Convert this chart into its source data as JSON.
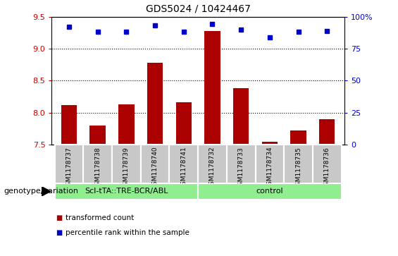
{
  "title": "GDS5024 / 10424467",
  "samples": [
    "GSM1178737",
    "GSM1178738",
    "GSM1178739",
    "GSM1178740",
    "GSM1178741",
    "GSM1178732",
    "GSM1178733",
    "GSM1178734",
    "GSM1178735",
    "GSM1178736"
  ],
  "bar_values": [
    8.12,
    7.8,
    8.13,
    8.78,
    8.16,
    9.28,
    8.38,
    7.54,
    7.72,
    7.9
  ],
  "dot_values": [
    92,
    88,
    88,
    93,
    88,
    94,
    90,
    84,
    88,
    89
  ],
  "group1_count": 5,
  "group2_count": 5,
  "group1_label": "Scl-tTA::TRE-BCR/ABL",
  "group2_label": "control",
  "bar_color": "#AA0000",
  "dot_color": "#0000CC",
  "group_bg": "#90EE90",
  "tick_bg": "#C8C8C8",
  "ylim_left": [
    7.5,
    9.5
  ],
  "ylim_right": [
    0,
    100
  ],
  "yticks_left": [
    7.5,
    8.0,
    8.5,
    9.0,
    9.5
  ],
  "yticks_right": [
    0,
    25,
    50,
    75,
    100
  ],
  "grid_values": [
    8.0,
    8.5,
    9.0
  ],
  "legend_red_label": "transformed count",
  "legend_blue_label": "percentile rank within the sample",
  "xlabel_label": "genotype/variation"
}
